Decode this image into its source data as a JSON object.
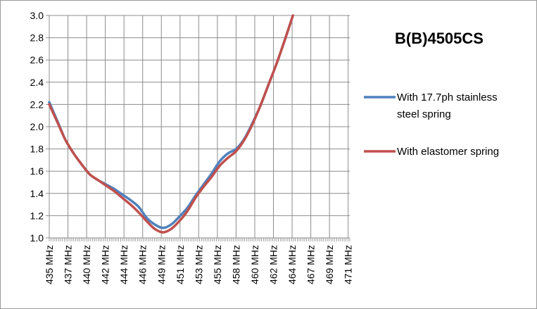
{
  "chart_data": {
    "type": "line",
    "title": "B(B)4505CS",
    "xlabel": "",
    "ylabel": "",
    "ylim": [
      1.0,
      3.0
    ],
    "yticks": [
      "1.0",
      "1.2",
      "1.4",
      "1.6",
      "1.8",
      "2.0",
      "2.2",
      "2.4",
      "2.6",
      "2.8",
      "3.0"
    ],
    "xlim": [
      435,
      472
    ],
    "xticks": [
      {
        "value": 435,
        "label": "435 MHz"
      },
      {
        "value": 437.3,
        "label": "437 MHz"
      },
      {
        "value": 439.6,
        "label": "440 MHz"
      },
      {
        "value": 441.9,
        "label": "442 MHz"
      },
      {
        "value": 444.2,
        "label": "444 MHz"
      },
      {
        "value": 446.5,
        "label": "446 MHz"
      },
      {
        "value": 448.8,
        "label": "449 MHz"
      },
      {
        "value": 451.1,
        "label": "451 MHz"
      },
      {
        "value": 453.4,
        "label": "453 MHz"
      },
      {
        "value": 455.7,
        "label": "455 MHz"
      },
      {
        "value": 458.0,
        "label": "458 MHz"
      },
      {
        "value": 460.3,
        "label": "460 MHz"
      },
      {
        "value": 462.6,
        "label": "462 MHz"
      },
      {
        "value": 464.9,
        "label": "464 MHz"
      },
      {
        "value": 467.2,
        "label": "467 MHz"
      },
      {
        "value": 469.5,
        "label": "469 MHz"
      },
      {
        "value": 471.8,
        "label": "471 MHz"
      }
    ],
    "grid": true,
    "legend_position": "right",
    "series": [
      {
        "name": "With 17.7ph stainless steel spring",
        "color": "#4F81BD",
        "points": [
          [
            435,
            2.22
          ],
          [
            436,
            2.05
          ],
          [
            437,
            1.88
          ],
          [
            438,
            1.76
          ],
          [
            439,
            1.66
          ],
          [
            440,
            1.57
          ],
          [
            441,
            1.52
          ],
          [
            442,
            1.48
          ],
          [
            443,
            1.44
          ],
          [
            444,
            1.39
          ],
          [
            445,
            1.34
          ],
          [
            446,
            1.28
          ],
          [
            447,
            1.18
          ],
          [
            448,
            1.12
          ],
          [
            449,
            1.09
          ],
          [
            450,
            1.12
          ],
          [
            451,
            1.19
          ],
          [
            452,
            1.27
          ],
          [
            453,
            1.38
          ],
          [
            454,
            1.48
          ],
          [
            455,
            1.58
          ],
          [
            456,
            1.69
          ],
          [
            457,
            1.76
          ],
          [
            458,
            1.8
          ],
          [
            459,
            1.89
          ],
          [
            460,
            2.03
          ],
          [
            461,
            2.19
          ],
          [
            462,
            2.38
          ],
          [
            463,
            2.57
          ],
          [
            464,
            2.78
          ],
          [
            465,
            3.0
          ]
        ]
      },
      {
        "name": "With elastomer spring",
        "color": "#C0504D",
        "points": [
          [
            435,
            2.2
          ],
          [
            436,
            2.04
          ],
          [
            437,
            1.88
          ],
          [
            438,
            1.76
          ],
          [
            439,
            1.66
          ],
          [
            440,
            1.57
          ],
          [
            441,
            1.52
          ],
          [
            442,
            1.47
          ],
          [
            443,
            1.42
          ],
          [
            444,
            1.36
          ],
          [
            445,
            1.3
          ],
          [
            446,
            1.23
          ],
          [
            447,
            1.15
          ],
          [
            448,
            1.08
          ],
          [
            449,
            1.05
          ],
          [
            450,
            1.08
          ],
          [
            451,
            1.15
          ],
          [
            452,
            1.24
          ],
          [
            453,
            1.36
          ],
          [
            454,
            1.46
          ],
          [
            455,
            1.55
          ],
          [
            456,
            1.65
          ],
          [
            457,
            1.72
          ],
          [
            458,
            1.78
          ],
          [
            459,
            1.88
          ],
          [
            460,
            2.02
          ],
          [
            461,
            2.19
          ],
          [
            462,
            2.38
          ],
          [
            463,
            2.57
          ],
          [
            464,
            2.78
          ],
          [
            465,
            3.0
          ]
        ]
      }
    ]
  }
}
